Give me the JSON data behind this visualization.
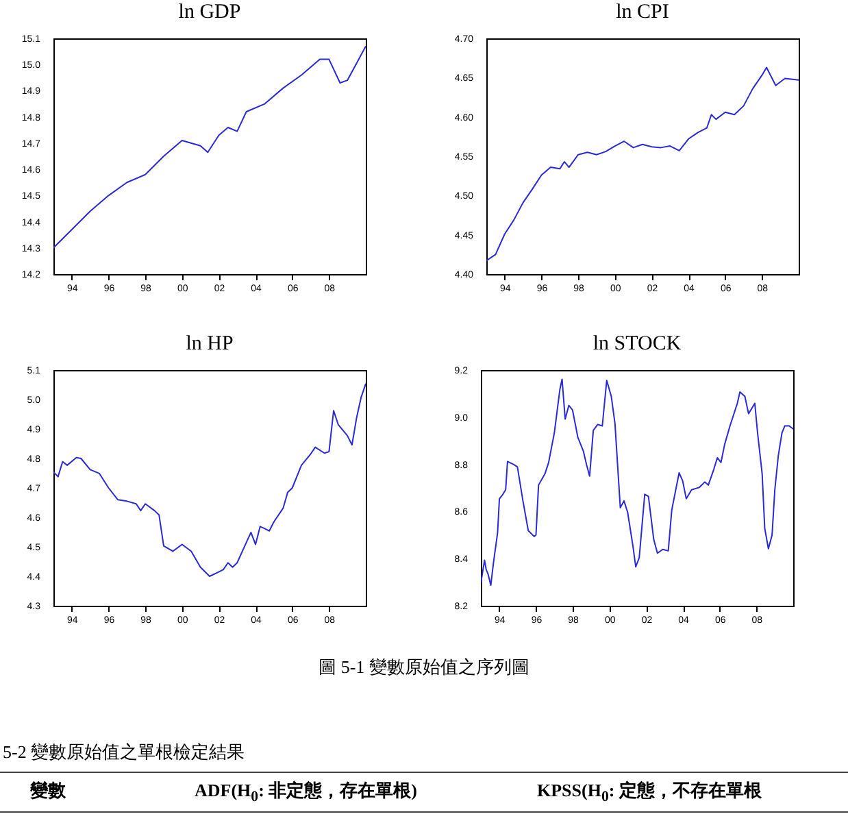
{
  "chart_data": [
    {
      "type": "line",
      "title": "ln GDP",
      "x": [
        1993,
        1994,
        1995,
        1996,
        1997,
        1998,
        1999,
        2000,
        2001,
        2001.4,
        2002,
        2002.5,
        2003,
        2003.5,
        2004.5,
        2005.5,
        2006.5,
        2007.5,
        2008,
        2008.6,
        2009,
        2010
      ],
      "series": [
        {
          "color": "#2a2ad8",
          "values": [
            14.3,
            14.37,
            14.44,
            14.5,
            14.55,
            14.58,
            14.65,
            14.71,
            14.69,
            14.665,
            14.73,
            14.76,
            14.745,
            14.82,
            14.85,
            14.91,
            14.96,
            15.02,
            15.02,
            14.93,
            14.94,
            15.07
          ]
        }
      ],
      "xlim": [
        1993,
        2010
      ],
      "xticks": [
        {
          "value": 1994,
          "label": "94"
        },
        {
          "value": 1996,
          "label": "96"
        },
        {
          "value": 1998,
          "label": "98"
        },
        {
          "value": 2000,
          "label": "00"
        },
        {
          "value": 2002,
          "label": "02"
        },
        {
          "value": 2004,
          "label": "04"
        },
        {
          "value": 2006,
          "label": "06"
        },
        {
          "value": 2008,
          "label": "08"
        }
      ],
      "ylim": [
        14.2,
        15.1
      ],
      "yticks": [
        14.2,
        14.3,
        14.4,
        14.5,
        14.6,
        14.7,
        14.8,
        14.9,
        {
          "value": 15,
          "label": "15.0"
        },
        15.1
      ]
    },
    {
      "type": "line",
      "title": "ln CPI",
      "x": [
        1993,
        1993.5,
        1994,
        1994.5,
        1995,
        1995.5,
        1996,
        1996.5,
        1997,
        1997.25,
        1997.5,
        1998,
        1998.5,
        1999,
        1999.5,
        2000,
        2000.5,
        2001,
        2001.5,
        2002,
        2002.5,
        2003,
        2003.5,
        2004,
        2004.5,
        2005,
        2005.25,
        2005.5,
        2006,
        2006.5,
        2007,
        2007.5,
        2008,
        2008.25,
        2008.75,
        2009.25,
        2010
      ],
      "series": [
        {
          "color": "#2a2ad8",
          "values": [
            4.417,
            4.425,
            4.451,
            4.469,
            4.491,
            4.508,
            4.526,
            4.536,
            4.534,
            4.543,
            4.536,
            4.552,
            4.555,
            4.552,
            4.556,
            4.563,
            4.569,
            4.561,
            4.565,
            4.562,
            4.561,
            4.563,
            4.557,
            4.572,
            4.58,
            4.586,
            4.603,
            4.597,
            4.606,
            4.603,
            4.614,
            4.636,
            4.653,
            4.663,
            4.64,
            4.649,
            4.647
          ]
        }
      ],
      "xlim": [
        1993,
        2010
      ],
      "xticks": [
        {
          "value": 1994,
          "label": "94"
        },
        {
          "value": 1996,
          "label": "96"
        },
        {
          "value": 1998,
          "label": "98"
        },
        {
          "value": 2000,
          "label": "00"
        },
        {
          "value": 2002,
          "label": "02"
        },
        {
          "value": 2004,
          "label": "04"
        },
        {
          "value": 2006,
          "label": "06"
        },
        {
          "value": 2008,
          "label": "08"
        }
      ],
      "ylim": [
        4.4,
        4.7
      ],
      "yticks": [
        {
          "value": 4.4,
          "label": "4.40"
        },
        {
          "value": 4.45,
          "label": "4.45"
        },
        {
          "value": 4.5,
          "label": "4.50"
        },
        {
          "value": 4.55,
          "label": "4.55"
        },
        {
          "value": 4.6,
          "label": "4.60"
        },
        {
          "value": 4.65,
          "label": "4.65"
        },
        {
          "value": 4.7,
          "label": "4.70"
        }
      ]
    },
    {
      "type": "line",
      "title": "ln HP",
      "x": [
        1993,
        1993.25,
        1993.5,
        1993.75,
        1994.25,
        1994.5,
        1995,
        1995.5,
        1996,
        1996.5,
        1997,
        1997.5,
        1997.75,
        1998,
        1998.5,
        1998.75,
        1999,
        1999.5,
        2000,
        2000.5,
        2001,
        2001.5,
        2002,
        2002.25,
        2002.5,
        2002.75,
        2003,
        2003.5,
        2003.75,
        2004,
        2004.25,
        2004.5,
        2004.75,
        2005,
        2005.5,
        2005.75,
        2006,
        2006.5,
        2007,
        2007.25,
        2007.75,
        2008,
        2008.25,
        2008.5,
        2009,
        2009.25,
        2009.5,
        2009.75,
        2010
      ],
      "series": [
        {
          "color": "#2a2ad8",
          "values": [
            4.754,
            4.738,
            4.789,
            4.777,
            4.803,
            4.8,
            4.762,
            4.749,
            4.7,
            4.66,
            4.655,
            4.646,
            4.623,
            4.646,
            4.623,
            4.608,
            4.503,
            4.485,
            4.508,
            4.485,
            4.431,
            4.4,
            4.415,
            4.423,
            4.446,
            4.431,
            4.446,
            4.515,
            4.549,
            4.508,
            4.569,
            4.562,
            4.554,
            4.585,
            4.631,
            4.685,
            4.7,
            4.777,
            4.815,
            4.838,
            4.818,
            4.823,
            4.962,
            4.915,
            4.877,
            4.846,
            4.938,
            5.008,
            5.054
          ]
        }
      ],
      "xlim": [
        1993,
        2010
      ],
      "xticks": [
        {
          "value": 1994,
          "label": "94"
        },
        {
          "value": 1996,
          "label": "96"
        },
        {
          "value": 1998,
          "label": "98"
        },
        {
          "value": 2000,
          "label": "00"
        },
        {
          "value": 2002,
          "label": "02"
        },
        {
          "value": 2004,
          "label": "04"
        },
        {
          "value": 2006,
          "label": "06"
        },
        {
          "value": 2008,
          "label": "08"
        }
      ],
      "ylim": [
        4.3,
        5.1
      ],
      "yticks": [
        4.3,
        4.4,
        4.5,
        4.6,
        4.7,
        4.8,
        4.9,
        {
          "value": 5,
          "label": "5.0"
        },
        5.1
      ]
    },
    {
      "type": "line",
      "title": "ln STOCK",
      "x": [
        1993,
        1993.2,
        1993.29,
        1993.39,
        1993.54,
        1993.69,
        1993.91,
        1994.01,
        1994.2,
        1994.35,
        1994.45,
        1994.79,
        1994.99,
        1995.29,
        1995.58,
        1995.9,
        1996,
        1996.14,
        1996.49,
        1996.69,
        1997,
        1997.3,
        1997.42,
        1997.59,
        1997.79,
        1997.99,
        1998.28,
        1998.58,
        1998.75,
        1998.92,
        1999.12,
        1999.36,
        1999.61,
        1999.85,
        2000.1,
        2000.3,
        2000.59,
        2000.79,
        2000.99,
        2001.28,
        2001.43,
        2001.62,
        2001.92,
        2002.12,
        2002.41,
        2002.61,
        2002.9,
        2003.2,
        2003.39,
        2003.79,
        2003.98,
        2004.18,
        2004.47,
        2004.89,
        2005.19,
        2005.38,
        2005.68,
        2005.87,
        2006.07,
        2006.27,
        2006.56,
        2006.96,
        2007.1,
        2007.37,
        2007.57,
        2007.77,
        2007.91,
        2008.06,
        2008.31,
        2008.45,
        2008.65,
        2008.85,
        2009,
        2009.19,
        2009.39,
        2009.54,
        2009.78,
        2010
      ],
      "series": [
        {
          "color": "#2a2ad8",
          "values": [
            8.297,
            8.393,
            8.354,
            8.335,
            8.287,
            8.384,
            8.509,
            8.654,
            8.673,
            8.692,
            8.812,
            8.799,
            8.789,
            8.645,
            8.519,
            8.494,
            8.5,
            8.712,
            8.76,
            8.808,
            8.934,
            9.117,
            9.161,
            8.992,
            9.05,
            9.03,
            8.914,
            8.856,
            8.799,
            8.75,
            8.944,
            8.969,
            8.963,
            9.156,
            9.088,
            8.973,
            8.616,
            8.645,
            8.596,
            8.452,
            8.365,
            8.404,
            8.673,
            8.664,
            8.481,
            8.423,
            8.439,
            8.433,
            8.606,
            8.764,
            8.731,
            8.654,
            8.692,
            8.702,
            8.725,
            8.712,
            8.779,
            8.828,
            8.808,
            8.885,
            8.963,
            9.059,
            9.107,
            9.088,
            9.015,
            9.04,
            9.059,
            8.934,
            8.76,
            8.529,
            8.442,
            8.5,
            8.692,
            8.837,
            8.934,
            8.963,
            8.963,
            8.95
          ]
        }
      ],
      "xlim": [
        1993,
        2010
      ],
      "xticks": [
        {
          "value": 1994,
          "label": "94"
        },
        {
          "value": 1996,
          "label": "96"
        },
        {
          "value": 1998,
          "label": "98"
        },
        {
          "value": 2000,
          "label": "00"
        },
        {
          "value": 2002,
          "label": "02"
        },
        {
          "value": 2004,
          "label": "04"
        },
        {
          "value": 2006,
          "label": "06"
        },
        {
          "value": 2008,
          "label": "08"
        }
      ],
      "ylim": [
        8.2,
        9.2
      ],
      "yticks": [
        8.2,
        8.4,
        8.6,
        8.8,
        {
          "value": 9,
          "label": "9.0"
        },
        9.2
      ],
      "annotations": [
        "圖 5-1 變數原始值之序列圖",
        "5-2 變數原始值之單根檢定結果",
        "變數",
        "ADF(H$_{0}$: 非定態，存在單根)",
        "KPSS(H$_{0}$: 定態，不存在單根"
      ]
    }
  ]
}
